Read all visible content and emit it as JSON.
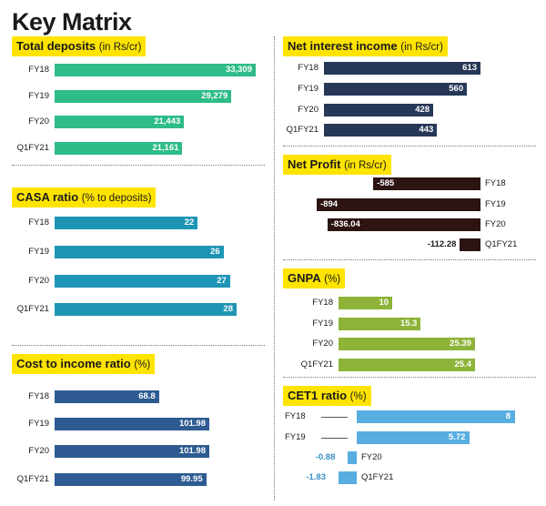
{
  "title": "Key Matrix",
  "chart_data": [
    {
      "id": "total_deposits",
      "type": "bar",
      "orientation": "horizontal",
      "title": "Total deposits",
      "unit": "(in Rs/cr)",
      "color": "#2ebc88",
      "categories": [
        "FY18",
        "FY19",
        "FY20",
        "Q1FY21"
      ],
      "values": [
        33309,
        29279,
        21443,
        21161
      ],
      "labels": [
        "33,309",
        "29,279",
        "21,443",
        "21,161"
      ],
      "xlim": [
        0,
        33309
      ]
    },
    {
      "id": "casa_ratio",
      "type": "bar",
      "orientation": "horizontal",
      "title": "CASA ratio",
      "unit": "(% to deposits)",
      "color": "#1f95b5",
      "categories": [
        "FY18",
        "FY19",
        "FY20",
        "Q1FY21"
      ],
      "values": [
        22,
        26,
        27,
        28
      ],
      "labels": [
        "22",
        "26",
        "27",
        "28"
      ],
      "xlim": [
        0,
        35
      ]
    },
    {
      "id": "cost_to_income",
      "type": "bar",
      "orientation": "horizontal",
      "title": "Cost to income ratio",
      "unit": "(%)",
      "color": "#2e5b92",
      "categories": [
        "FY18",
        "FY19",
        "FY20",
        "Q1FY21"
      ],
      "values": [
        68.8,
        101.98,
        101.98,
        99.95
      ],
      "labels": [
        "68.8",
        "101.98",
        "101.98",
        "99.95"
      ],
      "xlim": [
        0,
        101.98
      ]
    },
    {
      "id": "net_interest_income",
      "type": "bar",
      "orientation": "horizontal",
      "title": "Net interest income",
      "unit": "(in Rs/cr)",
      "color": "#273757",
      "categories": [
        "FY18",
        "FY19",
        "FY20",
        "Q1FY21"
      ],
      "values": [
        613,
        560,
        428,
        443
      ],
      "labels": [
        "613",
        "560",
        "428",
        "443"
      ],
      "xlim": [
        0,
        613
      ]
    },
    {
      "id": "net_profit",
      "type": "bar",
      "orientation": "horizontal",
      "title": "Net Profit",
      "unit": "(in Rs/cr)",
      "color": "#2b1411",
      "categories": [
        "FY18",
        "FY19",
        "FY20",
        "Q1FY21"
      ],
      "values": [
        -585,
        -894,
        -836.04,
        -112.28
      ],
      "labels": [
        "-585",
        "-894",
        "-836.04",
        "-112.28"
      ],
      "xlim": [
        -894,
        0
      ]
    },
    {
      "id": "gnpa",
      "type": "bar",
      "orientation": "horizontal",
      "title": "GNPA",
      "unit": "(%)",
      "color": "#8db338",
      "categories": [
        "FY18",
        "FY19",
        "FY20",
        "Q1FY21"
      ],
      "values": [
        10,
        15.3,
        25.39,
        25.4
      ],
      "labels": [
        "10",
        "15.3",
        "25.39",
        "25.4"
      ],
      "xlim": [
        0,
        25.4
      ]
    },
    {
      "id": "cet1_ratio",
      "type": "bar",
      "orientation": "horizontal",
      "title": "CET1 ratio",
      "unit": "(%)",
      "color": "#58ade1",
      "categories": [
        "FY18",
        "FY19",
        "FY20",
        "Q1FY21"
      ],
      "values": [
        8,
        5.72,
        -0.88,
        -1.83
      ],
      "labels": [
        "8",
        "5.72",
        "-0.88",
        "-1.83"
      ],
      "xlim": [
        -1.83,
        8
      ]
    }
  ]
}
